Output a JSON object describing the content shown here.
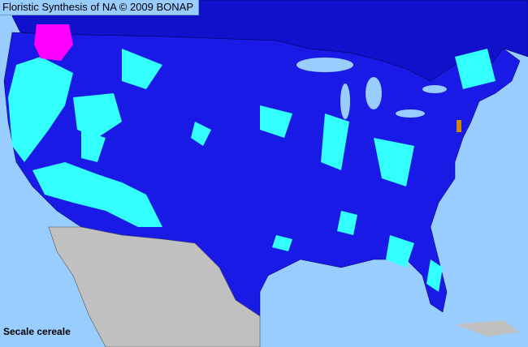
{
  "header": {
    "title": "Floristic Synthesis of NA © 2009 BONAP"
  },
  "map": {
    "species": "Secale cereale",
    "colors": {
      "water": "#99ccff",
      "us_counties": "#1a1ae6",
      "canada": "#1111cc",
      "mexico": "#c0c0c0",
      "present": "#33ffff",
      "highlight": "#ff00ff",
      "orange_county": "#cc8800"
    }
  }
}
